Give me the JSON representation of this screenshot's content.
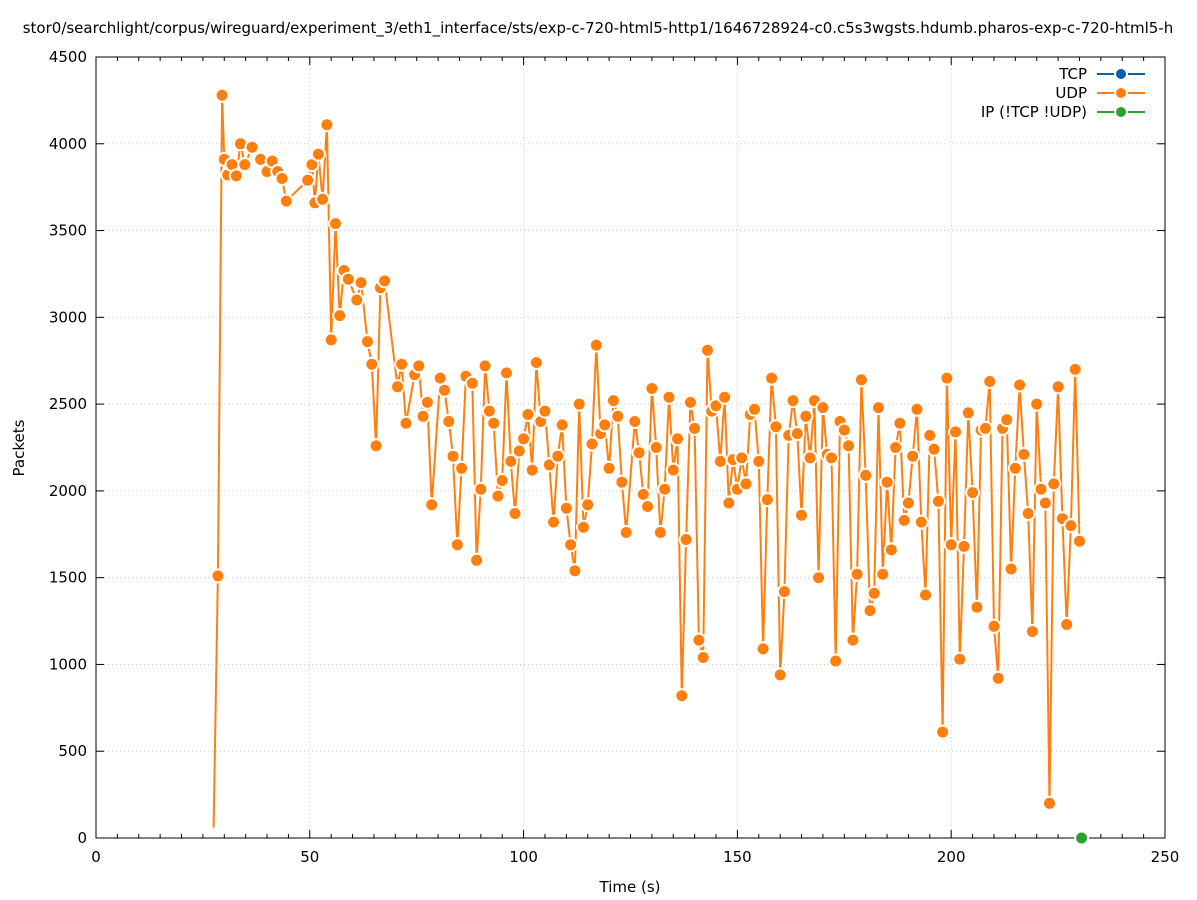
{
  "chart_data": {
    "type": "line",
    "title": "stor0/searchlight/corpus/wireguard/experiment_3/eth1_interface/sts/exp-c-720-html5-http1/1646728924-c0.c5s3wgsts.hdumb.pharos-exp-c-720-html5-h",
    "xlabel": "Time (s)",
    "ylabel": "Packets",
    "xlim": [
      0,
      250
    ],
    "ylim": [
      0,
      4500
    ],
    "xticks": [
      0,
      50,
      100,
      150,
      200,
      250
    ],
    "yticks": [
      0,
      500,
      1000,
      1500,
      2000,
      2500,
      3000,
      3500,
      4000,
      4500
    ],
    "grid": true,
    "legend_position": "top-right",
    "series": [
      {
        "name": "TCP",
        "color": "#0060ad",
        "points": []
      },
      {
        "name": "UDP",
        "color": "#ff7f0e",
        "points": [
          [
            27.5,
            60
          ],
          [
            28.5,
            1510
          ],
          [
            29.5,
            4280
          ],
          [
            30,
            3910
          ],
          [
            30.8,
            3820
          ],
          [
            31.8,
            3880
          ],
          [
            32.8,
            3815
          ],
          [
            33.8,
            4000
          ],
          [
            34.8,
            3880
          ],
          [
            36.5,
            3980
          ],
          [
            38.5,
            3910
          ],
          [
            40,
            3840
          ],
          [
            41.2,
            3900
          ],
          [
            42.5,
            3840
          ],
          [
            43.5,
            3800
          ],
          [
            44.5,
            3670
          ],
          [
            49.5,
            3790
          ],
          [
            50.5,
            3880
          ],
          [
            51.2,
            3660
          ],
          [
            52,
            3940
          ],
          [
            53,
            3680
          ],
          [
            54,
            4110
          ],
          [
            55,
            2870
          ],
          [
            56,
            3540
          ],
          [
            57,
            3010
          ],
          [
            58,
            3270
          ],
          [
            59,
            3220
          ],
          [
            61,
            3100
          ],
          [
            62,
            3200
          ],
          [
            63.5,
            2860
          ],
          [
            64.5,
            2730
          ],
          [
            65.5,
            2260
          ],
          [
            66.5,
            3170
          ],
          [
            67.5,
            3210
          ],
          [
            70.5,
            2600
          ],
          [
            71.5,
            2730
          ],
          [
            72.5,
            2390
          ],
          [
            74.5,
            2670
          ],
          [
            75.5,
            2720
          ],
          [
            76.5,
            2430
          ],
          [
            77.5,
            2510
          ],
          [
            78.5,
            1920
          ],
          [
            80.5,
            2650
          ],
          [
            81.5,
            2580
          ],
          [
            82.5,
            2400
          ],
          [
            83.5,
            2200
          ],
          [
            84.5,
            1690
          ],
          [
            85.5,
            2130
          ],
          [
            86.5,
            2660
          ],
          [
            88,
            2620
          ],
          [
            89,
            1600
          ],
          [
            90,
            2010
          ],
          [
            91,
            2720
          ],
          [
            92,
            2460
          ],
          [
            93,
            2390
          ],
          [
            94,
            1970
          ],
          [
            95,
            2060
          ],
          [
            96,
            2680
          ],
          [
            97,
            2170
          ],
          [
            98,
            1870
          ],
          [
            99,
            2230
          ],
          [
            100,
            2300
          ],
          [
            101,
            2440
          ],
          [
            102,
            2120
          ],
          [
            103,
            2740
          ],
          [
            104,
            2400
          ],
          [
            105,
            2460
          ],
          [
            106,
            2150
          ],
          [
            107,
            1820
          ],
          [
            108,
            2200
          ],
          [
            109,
            2380
          ],
          [
            110,
            1900
          ],
          [
            111,
            1690
          ],
          [
            112,
            1540
          ],
          [
            113,
            2500
          ],
          [
            114,
            1790
          ],
          [
            115,
            1920
          ],
          [
            116,
            2270
          ],
          [
            117,
            2840
          ],
          [
            118,
            2330
          ],
          [
            119,
            2380
          ],
          [
            120,
            2130
          ],
          [
            121,
            2520
          ],
          [
            122,
            2430
          ],
          [
            123,
            2050
          ],
          [
            124,
            1760
          ],
          [
            126,
            2400
          ],
          [
            127,
            2220
          ],
          [
            128,
            1980
          ],
          [
            129,
            1910
          ],
          [
            130,
            2590
          ],
          [
            131,
            2250
          ],
          [
            132,
            1760
          ],
          [
            133,
            2010
          ],
          [
            134,
            2540
          ],
          [
            135,
            2120
          ],
          [
            136,
            2300
          ],
          [
            137,
            820
          ],
          [
            138,
            1720
          ],
          [
            139,
            2510
          ],
          [
            140,
            2360
          ],
          [
            141,
            1140
          ],
          [
            142,
            1040
          ],
          [
            143,
            2810
          ],
          [
            144,
            2460
          ],
          [
            145,
            2490
          ],
          [
            146,
            2170
          ],
          [
            147,
            2540
          ],
          [
            148,
            1930
          ],
          [
            149,
            2180
          ],
          [
            150,
            2010
          ],
          [
            151,
            2190
          ],
          [
            152,
            2040
          ],
          [
            153,
            2440
          ],
          [
            154,
            2470
          ],
          [
            155,
            2170
          ],
          [
            156,
            1090
          ],
          [
            157,
            1950
          ],
          [
            158,
            2650
          ],
          [
            159,
            2370
          ],
          [
            160,
            940
          ],
          [
            161,
            1420
          ],
          [
            162,
            2320
          ],
          [
            163,
            2520
          ],
          [
            164,
            2330
          ],
          [
            165,
            1860
          ],
          [
            166,
            2430
          ],
          [
            167,
            2190
          ],
          [
            168,
            2520
          ],
          [
            169,
            1500
          ],
          [
            170,
            2480
          ],
          [
            171,
            2210
          ],
          [
            172,
            2190
          ],
          [
            173,
            1020
          ],
          [
            174,
            2400
          ],
          [
            175,
            2350
          ],
          [
            176,
            2260
          ],
          [
            177,
            1140
          ],
          [
            178,
            1520
          ],
          [
            179,
            2640
          ],
          [
            180,
            2090
          ],
          [
            181,
            1310
          ],
          [
            182,
            1410
          ],
          [
            183,
            2480
          ],
          [
            184,
            1520
          ],
          [
            185,
            2050
          ],
          [
            186,
            1660
          ],
          [
            187,
            2250
          ],
          [
            188,
            2390
          ],
          [
            189,
            1830
          ],
          [
            190,
            1930
          ],
          [
            191,
            2200
          ],
          [
            192,
            2470
          ],
          [
            193,
            1820
          ],
          [
            194,
            1400
          ],
          [
            195,
            2320
          ],
          [
            196,
            2240
          ],
          [
            197,
            1940
          ],
          [
            198,
            610
          ],
          [
            199,
            2650
          ],
          [
            200,
            1690
          ],
          [
            201,
            2340
          ],
          [
            202,
            1030
          ],
          [
            203,
            1680
          ],
          [
            204,
            2450
          ],
          [
            205,
            1990
          ],
          [
            206,
            1330
          ],
          [
            207,
            2350
          ],
          [
            208,
            2360
          ],
          [
            209,
            2630
          ],
          [
            210,
            1220
          ],
          [
            211,
            920
          ],
          [
            212,
            2360
          ],
          [
            213,
            2410
          ],
          [
            214,
            1550
          ],
          [
            215,
            2130
          ],
          [
            216,
            2610
          ],
          [
            217,
            2210
          ],
          [
            218,
            1870
          ],
          [
            219,
            1190
          ],
          [
            220,
            2500
          ],
          [
            221,
            2010
          ],
          [
            222,
            1930
          ],
          [
            223,
            200
          ],
          [
            224,
            2040
          ],
          [
            225,
            2600
          ],
          [
            226,
            1840
          ],
          [
            227,
            1230
          ],
          [
            228,
            1800
          ],
          [
            229,
            2700
          ],
          [
            230,
            1710
          ]
        ]
      },
      {
        "name": "IP (!TCP  !UDP)",
        "color": "#2ca02c",
        "points": [
          [
            230.5,
            0
          ]
        ]
      }
    ]
  }
}
